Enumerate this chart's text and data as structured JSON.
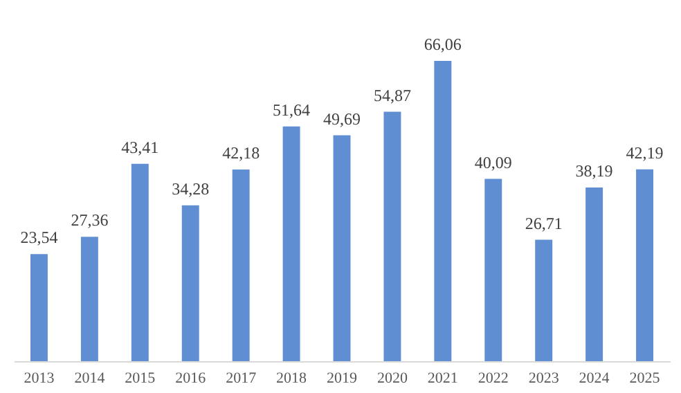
{
  "chart_data": {
    "type": "bar",
    "categories": [
      "2013",
      "2014",
      "2015",
      "2016",
      "2017",
      "2018",
      "2019",
      "2020",
      "2021",
      "2022",
      "2023",
      "2024",
      "2025"
    ],
    "values": [
      23.54,
      27.36,
      43.41,
      34.28,
      42.18,
      51.64,
      49.69,
      54.87,
      66.06,
      40.09,
      26.71,
      38.19,
      42.19
    ],
    "value_labels": [
      "23,54",
      "27,36",
      "43,41",
      "34,28",
      "42,18",
      "51,64",
      "49,69",
      "54,87",
      "66,06",
      "40,09",
      "26,71",
      "38,19",
      "42,19"
    ],
    "color": "#5f8ed3",
    "grid": false
  }
}
